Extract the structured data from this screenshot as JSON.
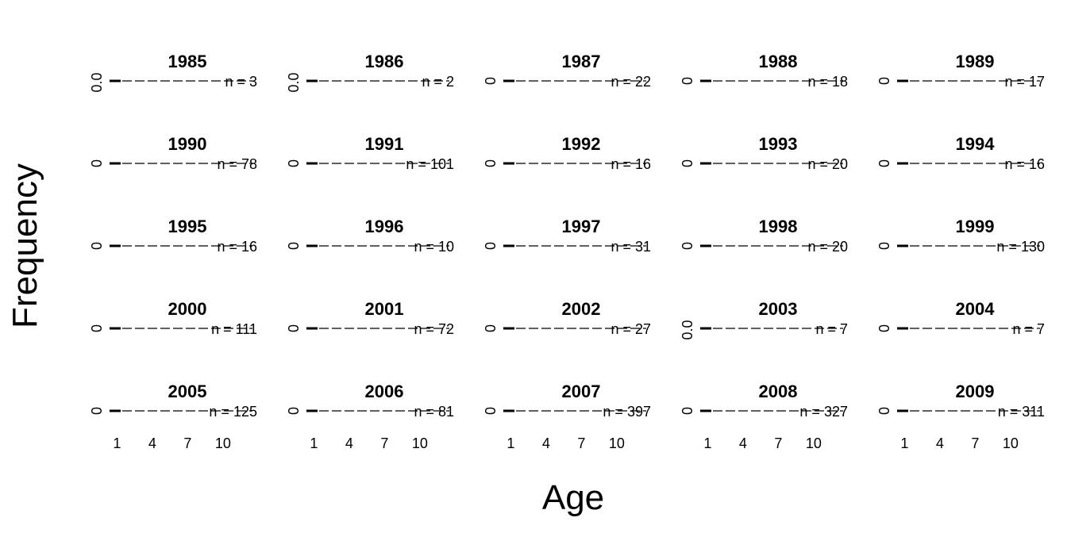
{
  "chart_data": {
    "type": "bar",
    "xlabel": "Age",
    "ylabel": "Frequency",
    "x_ticks": [
      "1",
      "4",
      "7",
      "10"
    ],
    "n_prefix": "n = ",
    "panels": [
      {
        "year": "1985",
        "n": "3",
        "y_tick": "0.0"
      },
      {
        "year": "1986",
        "n": "2",
        "y_tick": "0.0"
      },
      {
        "year": "1987",
        "n": "22",
        "y_tick": "0"
      },
      {
        "year": "1988",
        "n": "18",
        "y_tick": "0"
      },
      {
        "year": "1989",
        "n": "17",
        "y_tick": "0"
      },
      {
        "year": "1990",
        "n": "78",
        "y_tick": "0"
      },
      {
        "year": "1991",
        "n": "101",
        "y_tick": "0"
      },
      {
        "year": "1992",
        "n": "16",
        "y_tick": "0"
      },
      {
        "year": "1993",
        "n": "20",
        "y_tick": "0"
      },
      {
        "year": "1994",
        "n": "16",
        "y_tick": "0"
      },
      {
        "year": "1995",
        "n": "16",
        "y_tick": "0"
      },
      {
        "year": "1996",
        "n": "10",
        "y_tick": "0"
      },
      {
        "year": "1997",
        "n": "31",
        "y_tick": "0"
      },
      {
        "year": "1998",
        "n": "20",
        "y_tick": "0"
      },
      {
        "year": "1999",
        "n": "130",
        "y_tick": "0"
      },
      {
        "year": "2000",
        "n": "111",
        "y_tick": "0"
      },
      {
        "year": "2001",
        "n": "72",
        "y_tick": "0"
      },
      {
        "year": "2002",
        "n": "27",
        "y_tick": "0"
      },
      {
        "year": "2003",
        "n": "7",
        "y_tick": "0.0"
      },
      {
        "year": "2004",
        "n": "7",
        "y_tick": "0"
      },
      {
        "year": "2005",
        "n": "125",
        "y_tick": "0"
      },
      {
        "year": "2006",
        "n": "81",
        "y_tick": "0"
      },
      {
        "year": "2007",
        "n": "397",
        "y_tick": "0"
      },
      {
        "year": "2008",
        "n": "327",
        "y_tick": "0"
      },
      {
        "year": "2009",
        "n": "311",
        "y_tick": "0"
      }
    ]
  }
}
